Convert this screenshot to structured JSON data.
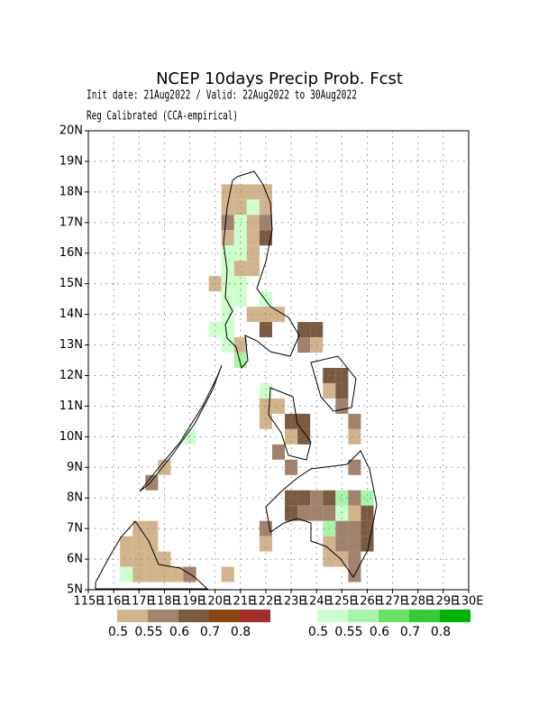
{
  "header": {
    "title": "NCEP 10days Precip Prob. Fcst",
    "subtitle_1": "Init date: 21Aug2022 / Valid: 22Aug2022 to 30Aug2022",
    "subtitle_2": "Reg Calibrated (CCA-empirical)"
  },
  "map": {
    "xlim": [
      115,
      130
    ],
    "ylim": [
      5,
      20
    ],
    "cell_size": 0.5,
    "grid": true,
    "lat_ticks": [
      {
        "value": 5,
        "label": "5N"
      },
      {
        "value": 6,
        "label": "6N"
      },
      {
        "value": 7,
        "label": "7N"
      },
      {
        "value": 8,
        "label": "8N"
      },
      {
        "value": 9,
        "label": "9N"
      },
      {
        "value": 10,
        "label": "10N"
      },
      {
        "value": 11,
        "label": "11N"
      },
      {
        "value": 12,
        "label": "12N"
      },
      {
        "value": 13,
        "label": "13N"
      },
      {
        "value": 14,
        "label": "14N"
      },
      {
        "value": 15,
        "label": "15N"
      },
      {
        "value": 16,
        "label": "16N"
      },
      {
        "value": 17,
        "label": "17N"
      },
      {
        "value": 18,
        "label": "18N"
      },
      {
        "value": 19,
        "label": "19N"
      },
      {
        "value": 20,
        "label": "20N"
      }
    ],
    "lon_ticks": [
      {
        "value": 115,
        "label": "115E"
      },
      {
        "value": 116,
        "label": "116E"
      },
      {
        "value": 117,
        "label": "117E"
      },
      {
        "value": 118,
        "label": "118E"
      },
      {
        "value": 119,
        "label": "119E"
      },
      {
        "value": 120,
        "label": "120E"
      },
      {
        "value": 121,
        "label": "121E"
      },
      {
        "value": 122,
        "label": "122E"
      },
      {
        "value": 123,
        "label": "123E"
      },
      {
        "value": 124,
        "label": "124E"
      },
      {
        "value": 125,
        "label": "125E"
      },
      {
        "value": 126,
        "label": "126E"
      },
      {
        "value": 127,
        "label": "127E"
      },
      {
        "value": 128,
        "label": "128E"
      },
      {
        "value": 129,
        "label": "129E"
      },
      {
        "value": 130,
        "label": "130E"
      }
    ],
    "legend": {
      "below": {
        "colors": [
          "#d2b48c",
          "#a0826d",
          "#7a5a40",
          "#8b4513",
          "#a52a2a"
        ],
        "levels": [
          0.5,
          0.55,
          0.6,
          0.7,
          0.8
        ]
      },
      "above": {
        "colors": [
          "#ccffcc",
          "#a6f5a6",
          "#66e066",
          "#33cc33",
          "#00b300"
        ],
        "levels": [
          0.5,
          0.55,
          0.6,
          0.7,
          0.8
        ]
      }
    },
    "cells": [
      {
        "lon": 120.25,
        "lat": 17.75,
        "cat": "below",
        "level": 0.5
      },
      {
        "lon": 120.75,
        "lat": 17.75,
        "cat": "below",
        "level": 0.5
      },
      {
        "lon": 121.25,
        "lat": 17.75,
        "cat": "below",
        "level": 0.5
      },
      {
        "lon": 121.75,
        "lat": 17.75,
        "cat": "below",
        "level": 0.5
      },
      {
        "lon": 120.25,
        "lat": 17.25,
        "cat": "below",
        "level": 0.5
      },
      {
        "lon": 120.75,
        "lat": 17.25,
        "cat": "below",
        "level": 0.5
      },
      {
        "lon": 121.25,
        "lat": 17.25,
        "cat": "above",
        "level": 0.5
      },
      {
        "lon": 121.75,
        "lat": 17.25,
        "cat": "below",
        "level": 0.5
      },
      {
        "lon": 120.25,
        "lat": 16.75,
        "cat": "below",
        "level": 0.55
      },
      {
        "lon": 120.75,
        "lat": 16.75,
        "cat": "above",
        "level": 0.5
      },
      {
        "lon": 121.25,
        "lat": 16.75,
        "cat": "below",
        "level": 0.5
      },
      {
        "lon": 121.75,
        "lat": 16.75,
        "cat": "below",
        "level": 0.55
      },
      {
        "lon": 120.25,
        "lat": 16.25,
        "cat": "below",
        "level": 0.5
      },
      {
        "lon": 120.75,
        "lat": 16.25,
        "cat": "above",
        "level": 0.5
      },
      {
        "lon": 121.25,
        "lat": 16.25,
        "cat": "below",
        "level": 0.5
      },
      {
        "lon": 121.75,
        "lat": 16.25,
        "cat": "below",
        "level": 0.6
      },
      {
        "lon": 120.25,
        "lat": 15.75,
        "cat": "above",
        "level": 0.5
      },
      {
        "lon": 120.75,
        "lat": 15.75,
        "cat": "above",
        "level": 0.5
      },
      {
        "lon": 121.25,
        "lat": 15.75,
        "cat": "below",
        "level": 0.5
      },
      {
        "lon": 120.25,
        "lat": 15.25,
        "cat": "above",
        "level": 0.5
      },
      {
        "lon": 120.75,
        "lat": 15.25,
        "cat": "below",
        "level": 0.5
      },
      {
        "lon": 121.25,
        "lat": 15.25,
        "cat": "below",
        "level": 0.5
      },
      {
        "lon": 119.75,
        "lat": 14.75,
        "cat": "below",
        "level": 0.5
      },
      {
        "lon": 120.25,
        "lat": 14.75,
        "cat": "above",
        "level": 0.5
      },
      {
        "lon": 120.75,
        "lat": 14.75,
        "cat": "above",
        "level": 0.5
      },
      {
        "lon": 120.25,
        "lat": 14.25,
        "cat": "above",
        "level": 0.5
      },
      {
        "lon": 120.75,
        "lat": 14.25,
        "cat": "above",
        "level": 0.5
      },
      {
        "lon": 121.75,
        "lat": 14.25,
        "cat": "above",
        "level": 0.5
      },
      {
        "lon": 120.25,
        "lat": 13.75,
        "cat": "above",
        "level": 0.5
      },
      {
        "lon": 121.25,
        "lat": 13.75,
        "cat": "below",
        "level": 0.5
      },
      {
        "lon": 121.75,
        "lat": 13.75,
        "cat": "below",
        "level": 0.5
      },
      {
        "lon": 122.25,
        "lat": 13.75,
        "cat": "below",
        "level": 0.5
      },
      {
        "lon": 119.75,
        "lat": 13.25,
        "cat": "above",
        "level": 0.5
      },
      {
        "lon": 120.25,
        "lat": 13.25,
        "cat": "above",
        "level": 0.5
      },
      {
        "lon": 121.75,
        "lat": 13.25,
        "cat": "below",
        "level": 0.6
      },
      {
        "lon": 120.25,
        "lat": 12.75,
        "cat": "above",
        "level": 0.5
      },
      {
        "lon": 120.75,
        "lat": 12.75,
        "cat": "below",
        "level": 0.5
      },
      {
        "lon": 120.75,
        "lat": 12.25,
        "cat": "above",
        "level": 0.55
      },
      {
        "lon": 123.25,
        "lat": 13.25,
        "cat": "below",
        "level": 0.6
      },
      {
        "lon": 123.75,
        "lat": 13.25,
        "cat": "below",
        "level": 0.6
      },
      {
        "lon": 123.25,
        "lat": 12.75,
        "cat": "below",
        "level": 0.55
      },
      {
        "lon": 123.75,
        "lat": 12.75,
        "cat": "below",
        "level": 0.5
      },
      {
        "lon": 121.75,
        "lat": 11.25,
        "cat": "above",
        "level": 0.5
      },
      {
        "lon": 121.75,
        "lat": 10.75,
        "cat": "below",
        "level": 0.5
      },
      {
        "lon": 122.25,
        "lat": 10.75,
        "cat": "below",
        "level": 0.5
      },
      {
        "lon": 121.75,
        "lat": 10.25,
        "cat": "below",
        "level": 0.5
      },
      {
        "lon": 124.25,
        "lat": 11.75,
        "cat": "below",
        "level": 0.6
      },
      {
        "lon": 124.75,
        "lat": 11.75,
        "cat": "below",
        "level": 0.6
      },
      {
        "lon": 124.25,
        "lat": 11.25,
        "cat": "below",
        "level": 0.5
      },
      {
        "lon": 124.75,
        "lat": 11.25,
        "cat": "below",
        "level": 0.6
      },
      {
        "lon": 124.75,
        "lat": 10.75,
        "cat": "below",
        "level": 0.55
      },
      {
        "lon": 125.25,
        "lat": 10.25,
        "cat": "below",
        "level": 0.55
      },
      {
        "lon": 125.25,
        "lat": 9.75,
        "cat": "below",
        "level": 0.5
      },
      {
        "lon": 122.75,
        "lat": 10.25,
        "cat": "below",
        "level": 0.6
      },
      {
        "lon": 123.25,
        "lat": 10.25,
        "cat": "below",
        "level": 0.6
      },
      {
        "lon": 122.75,
        "lat": 9.75,
        "cat": "below",
        "level": 0.5
      },
      {
        "lon": 123.25,
        "lat": 9.75,
        "cat": "below",
        "level": 0.6
      },
      {
        "lon": 122.25,
        "lat": 9.25,
        "cat": "below",
        "level": 0.55
      },
      {
        "lon": 122.75,
        "lat": 8.75,
        "cat": "below",
        "level": 0.55
      },
      {
        "lon": 125.25,
        "lat": 8.75,
        "cat": "below",
        "level": 0.55
      },
      {
        "lon": 122.75,
        "lat": 7.75,
        "cat": "below",
        "level": 0.6
      },
      {
        "lon": 123.25,
        "lat": 7.75,
        "cat": "below",
        "level": 0.6
      },
      {
        "lon": 123.75,
        "lat": 7.75,
        "cat": "below",
        "level": 0.55
      },
      {
        "lon": 124.25,
        "lat": 7.75,
        "cat": "below",
        "level": 0.6
      },
      {
        "lon": 124.75,
        "lat": 7.75,
        "cat": "above",
        "level": 0.55
      },
      {
        "lon": 125.25,
        "lat": 7.75,
        "cat": "below",
        "level": 0.55
      },
      {
        "lon": 125.75,
        "lat": 7.75,
        "cat": "above",
        "level": 0.55
      },
      {
        "lon": 122.75,
        "lat": 7.25,
        "cat": "below",
        "level": 0.6
      },
      {
        "lon": 123.25,
        "lat": 7.25,
        "cat": "below",
        "level": 0.55
      },
      {
        "lon": 123.75,
        "lat": 7.25,
        "cat": "below",
        "level": 0.55
      },
      {
        "lon": 124.25,
        "lat": 7.25,
        "cat": "below",
        "level": 0.55
      },
      {
        "lon": 124.75,
        "lat": 7.25,
        "cat": "above",
        "level": 0.5
      },
      {
        "lon": 125.25,
        "lat": 7.25,
        "cat": "below",
        "level": 0.5
      },
      {
        "lon": 125.75,
        "lat": 7.25,
        "cat": "below",
        "level": 0.6
      },
      {
        "lon": 121.75,
        "lat": 6.75,
        "cat": "below",
        "level": 0.55
      },
      {
        "lon": 124.25,
        "lat": 6.75,
        "cat": "above",
        "level": 0.55
      },
      {
        "lon": 124.75,
        "lat": 6.75,
        "cat": "below",
        "level": 0.55
      },
      {
        "lon": 125.25,
        "lat": 6.75,
        "cat": "below",
        "level": 0.55
      },
      {
        "lon": 125.75,
        "lat": 6.75,
        "cat": "below",
        "level": 0.6
      },
      {
        "lon": 121.75,
        "lat": 6.25,
        "cat": "below",
        "level": 0.5
      },
      {
        "lon": 124.25,
        "lat": 6.25,
        "cat": "below",
        "level": 0.5
      },
      {
        "lon": 124.75,
        "lat": 6.25,
        "cat": "below",
        "level": 0.55
      },
      {
        "lon": 125.25,
        "lat": 6.25,
        "cat": "below",
        "level": 0.55
      },
      {
        "lon": 125.75,
        "lat": 6.25,
        "cat": "below",
        "level": 0.6
      },
      {
        "lon": 124.25,
        "lat": 5.75,
        "cat": "below",
        "level": 0.5
      },
      {
        "lon": 124.75,
        "lat": 5.75,
        "cat": "below",
        "level": 0.5
      },
      {
        "lon": 125.25,
        "lat": 5.75,
        "cat": "below",
        "level": 0.55
      },
      {
        "lon": 125.25,
        "lat": 5.25,
        "cat": "below",
        "level": 0.55
      },
      {
        "lon": 117.75,
        "lat": 8.75,
        "cat": "below",
        "level": 0.5
      },
      {
        "lon": 117.25,
        "lat": 8.25,
        "cat": "below",
        "level": 0.55
      },
      {
        "lon": 118.75,
        "lat": 9.75,
        "cat": "above",
        "level": 0.5
      },
      {
        "lon": 116.75,
        "lat": 6.75,
        "cat": "below",
        "level": 0.5
      },
      {
        "lon": 117.25,
        "lat": 6.75,
        "cat": "below",
        "level": 0.5
      },
      {
        "lon": 116.25,
        "lat": 6.25,
        "cat": "below",
        "level": 0.5
      },
      {
        "lon": 116.75,
        "lat": 6.25,
        "cat": "below",
        "level": 0.5
      },
      {
        "lon": 117.25,
        "lat": 6.25,
        "cat": "below",
        "level": 0.5
      },
      {
        "lon": 116.25,
        "lat": 5.75,
        "cat": "below",
        "level": 0.5
      },
      {
        "lon": 116.75,
        "lat": 5.75,
        "cat": "below",
        "level": 0.5
      },
      {
        "lon": 117.25,
        "lat": 5.75,
        "cat": "below",
        "level": 0.5
      },
      {
        "lon": 117.75,
        "lat": 5.75,
        "cat": "below",
        "level": 0.5
      },
      {
        "lon": 116.25,
        "lat": 5.25,
        "cat": "above",
        "level": 0.5
      },
      {
        "lon": 116.75,
        "lat": 5.25,
        "cat": "below",
        "level": 0.5
      },
      {
        "lon": 117.25,
        "lat": 5.25,
        "cat": "below",
        "level": 0.5
      },
      {
        "lon": 117.75,
        "lat": 5.25,
        "cat": "below",
        "level": 0.5
      },
      {
        "lon": 118.25,
        "lat": 5.25,
        "cat": "below",
        "level": 0.5
      },
      {
        "lon": 118.75,
        "lat": 5.25,
        "cat": "below",
        "level": 0.55
      },
      {
        "lon": 120.25,
        "lat": 5.25,
        "cat": "below",
        "level": 0.5
      }
    ]
  }
}
